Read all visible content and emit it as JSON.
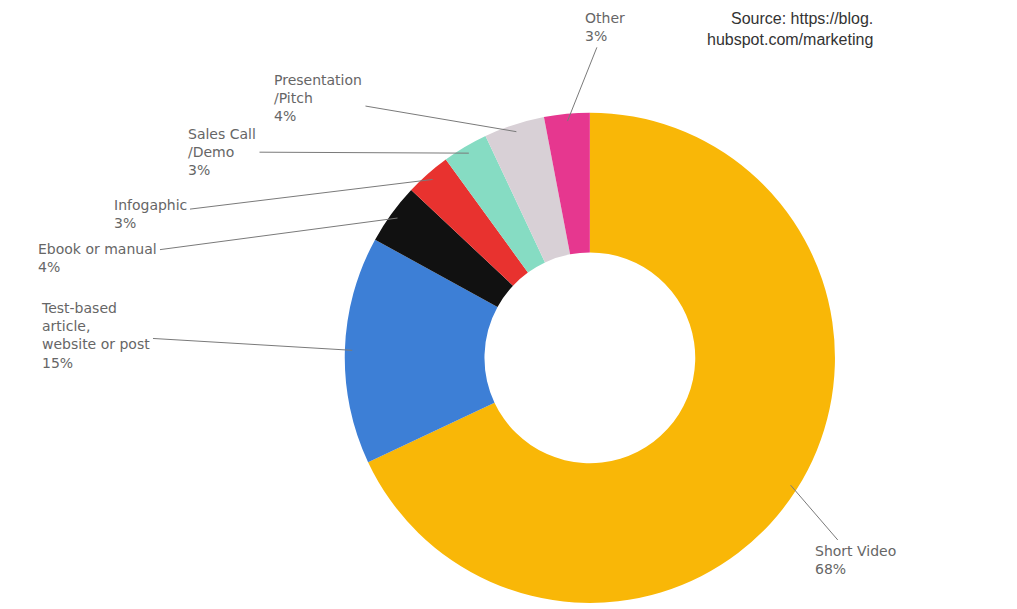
{
  "chart_data": {
    "type": "donut",
    "source": "Source: https://blog. hubspot.com/marketing",
    "categories": [
      "Short Video",
      "Test-based article, website or post",
      "Ebook or manual",
      "Infogaphic",
      "Sales Call /Demo",
      "Presentation /Pitch",
      "Other"
    ],
    "values": [
      68,
      15,
      4,
      3,
      3,
      4,
      3
    ],
    "value_labels": [
      "68%",
      "15%",
      "4%",
      "3%",
      "3%",
      "4%",
      "3%"
    ],
    "colors": [
      "#f9b707",
      "#3d7fd6",
      "#111111",
      "#e8322f",
      "#86dcc3",
      "#d8d0d6",
      "#e6378f"
    ],
    "data_labels": true
  }
}
